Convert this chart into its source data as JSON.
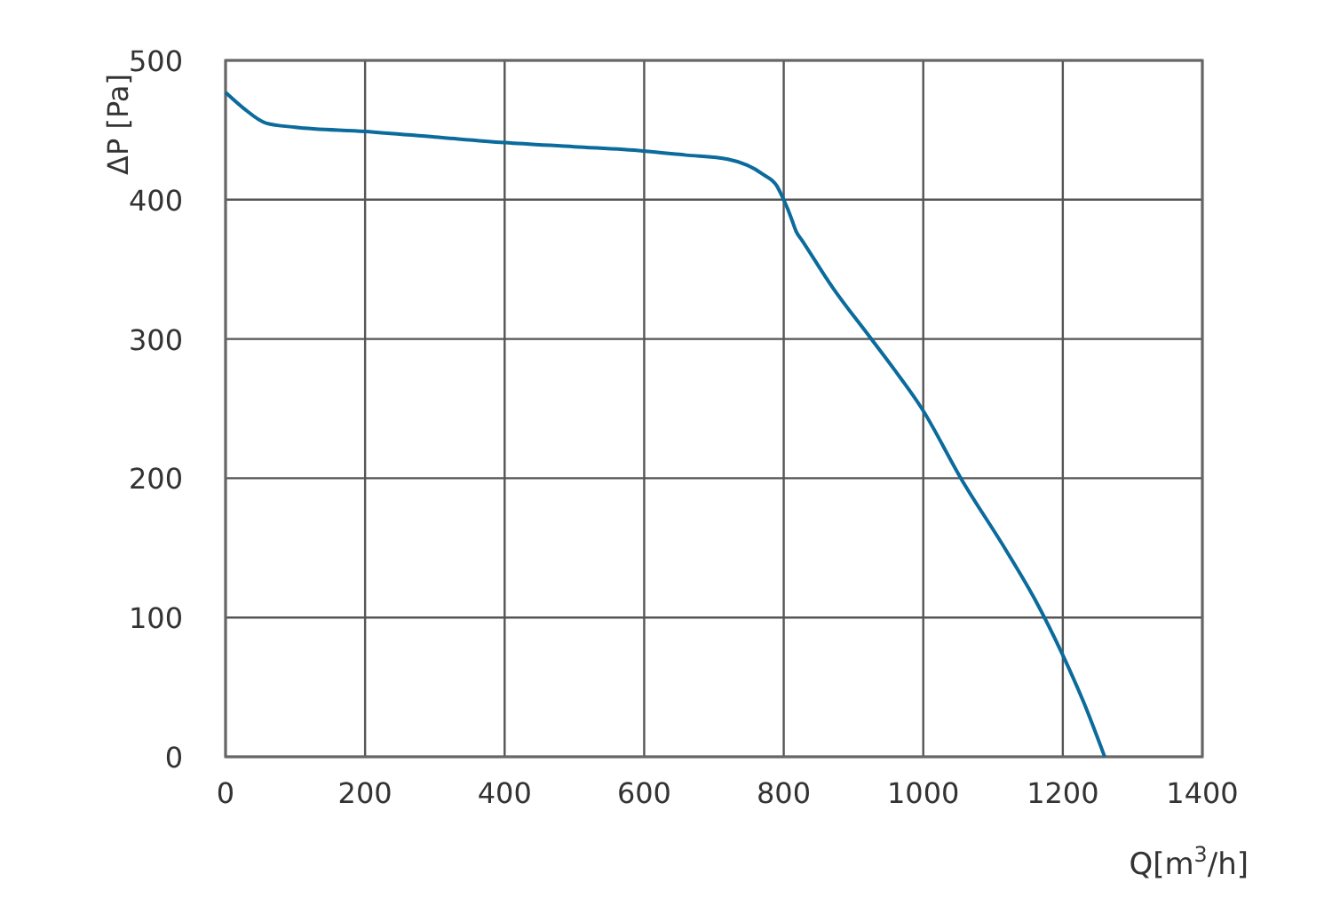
{
  "chart_data": {
    "type": "line",
    "xlabel": "Q[m$^{3}$/h]",
    "ylabel": "ΔP [Pa]",
    "xlim": [
      0,
      1400
    ],
    "ylim": [
      0,
      500
    ],
    "xticks": [
      0,
      200,
      400,
      600,
      800,
      1000,
      1200,
      1400
    ],
    "yticks": [
      0,
      100,
      200,
      300,
      400,
      500
    ],
    "grid": true,
    "series": [
      {
        "color": "#0b6b9c",
        "x": [
          0,
          25,
          58,
          100,
          200,
          300,
          400,
          500,
          598,
          660,
          720,
          771,
          790,
          799,
          806,
          812,
          818,
          826,
          870,
          924,
          960,
          998,
          1055,
          1119,
          1160,
          1199,
          1230,
          1260
        ],
        "values": [
          477,
          466,
          455,
          452,
          449,
          445,
          441,
          438,
          435,
          432,
          429,
          418,
          410,
          401,
          393,
          385,
          377,
          371,
          337,
          301,
          277,
          250,
          199,
          148,
          113,
          74,
          39,
          0
        ]
      }
    ]
  }
}
